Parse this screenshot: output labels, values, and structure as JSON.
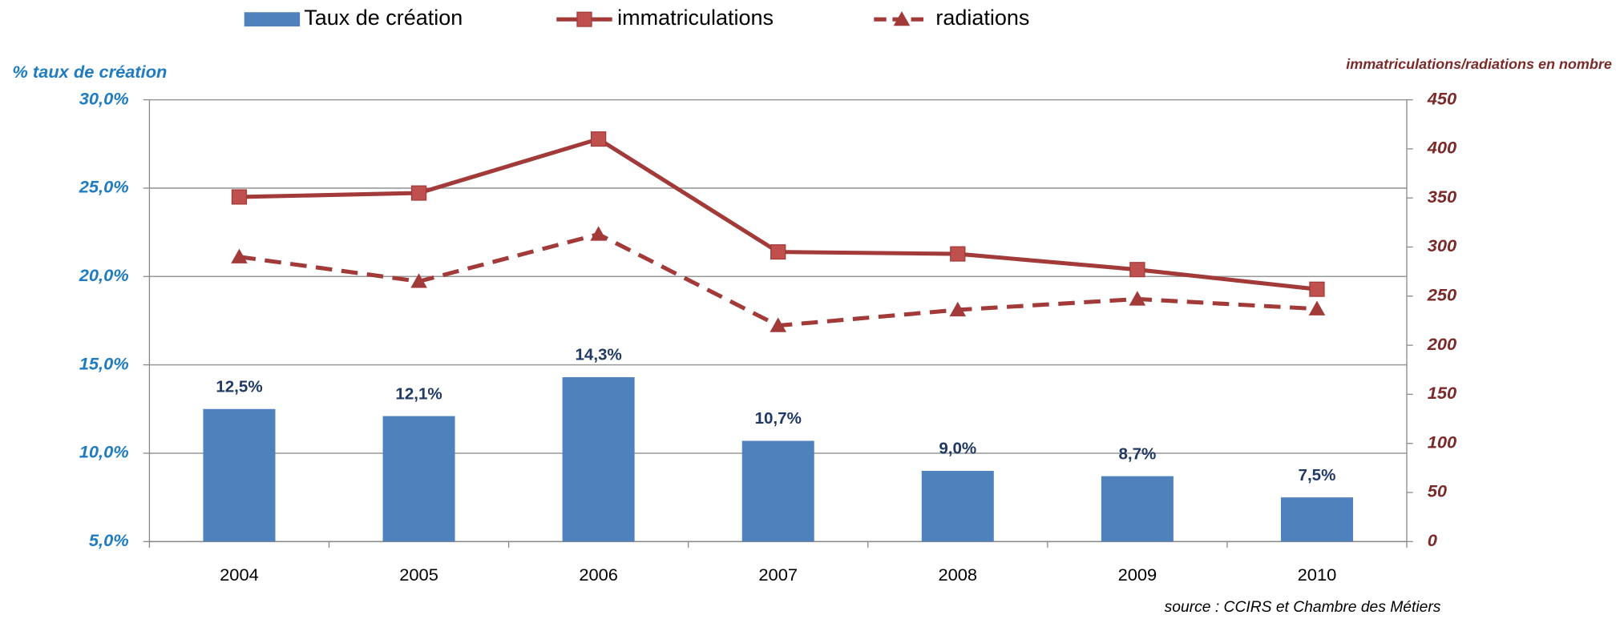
{
  "chart_data": {
    "type": "bar",
    "ylabel": "% taux de création",
    "y2label": "immatriculations/radiations en nombre",
    "source": "source : CCIRS et Chambre des Métiers",
    "categories": [
      "2004",
      "2005",
      "2006",
      "2007",
      "2008",
      "2009",
      "2010"
    ],
    "series": [
      {
        "name": "Taux de création",
        "type": "bar",
        "color": "#4f81bd",
        "values": [
          12.5,
          12.1,
          14.3,
          10.7,
          9.0,
          8.7,
          7.5
        ],
        "value_labels": [
          "12,5%",
          "12,1%",
          "14,3%",
          "10,7%",
          "9,0%",
          "8,7%",
          "7,5%"
        ]
      },
      {
        "name": "immatriculations",
        "type": "line",
        "axis": "y2",
        "color": "#a33a3a",
        "marker": "square",
        "dash": false,
        "values": [
          351,
          355,
          410,
          295,
          293,
          277,
          257
        ]
      },
      {
        "name": "radiations",
        "type": "line",
        "axis": "y2",
        "color": "#a33a3a",
        "marker": "triangle",
        "dash": true,
        "values": [
          290,
          265,
          313,
          220,
          236,
          247,
          237
        ]
      }
    ],
    "ylim": [
      5,
      30
    ],
    "yticks": [
      {
        "value": 5,
        "label": "5,0%"
      },
      {
        "value": 10,
        "label": "10,0%"
      },
      {
        "value": 15,
        "label": "15,0%"
      },
      {
        "value": 20,
        "label": "20,0%"
      },
      {
        "value": 25,
        "label": "25,0%"
      },
      {
        "value": 30,
        "label": "30,0%"
      }
    ],
    "y2lim": [
      0,
      450
    ],
    "y2ticks": [
      0,
      50,
      100,
      150,
      200,
      250,
      300,
      350,
      400,
      450
    ],
    "grid": true
  }
}
